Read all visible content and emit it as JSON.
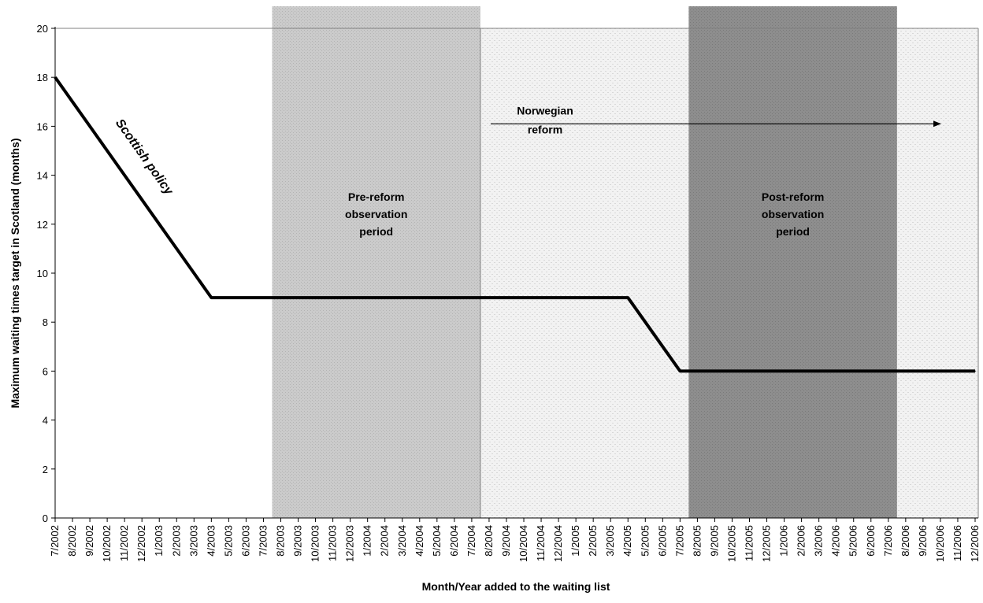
{
  "chart_data": {
    "type": "line",
    "xlabel": "Month/Year added to the waiting list",
    "ylabel": "Maximum waiting times target in Scotland (months)",
    "ylim": [
      0,
      20
    ],
    "yticks": [
      0,
      2,
      4,
      6,
      8,
      10,
      12,
      14,
      16,
      18,
      20
    ],
    "grid": false,
    "categories": [
      "7/2002",
      "8/2002",
      "9/2002",
      "10/2002",
      "11/2002",
      "12/2002",
      "1/2003",
      "2/2003",
      "3/2003",
      "4/2003",
      "5/2003",
      "6/2003",
      "7/2003",
      "8/2003",
      "9/2003",
      "10/2003",
      "11/2003",
      "12/2003",
      "1/2004",
      "2/2004",
      "3/2004",
      "4/2004",
      "5/2004",
      "6/2004",
      "7/2004",
      "8/2004",
      "9/2004",
      "10/2004",
      "11/2004",
      "12/2004",
      "1/2005",
      "2/2005",
      "3/2005",
      "4/2005",
      "5/2005",
      "6/2005",
      "7/2005",
      "8/2005",
      "9/2005",
      "10/2005",
      "11/2005",
      "12/2005",
      "1/2006",
      "2/2006",
      "3/2006",
      "4/2006",
      "5/2006",
      "6/2006",
      "7/2006",
      "8/2006",
      "9/2006",
      "10/2006",
      "11/2006",
      "12/2006"
    ],
    "series": [
      {
        "name": "",
        "values": [
          18,
          17,
          16,
          15,
          14,
          13,
          12,
          11,
          10,
          9,
          9,
          9,
          9,
          9,
          9,
          9,
          9,
          9,
          9,
          9,
          9,
          9,
          9,
          9,
          9,
          9,
          9,
          9,
          9,
          9,
          9,
          9,
          9,
          9,
          8,
          7,
          6,
          6,
          6,
          6,
          6,
          6,
          6,
          6,
          6,
          6,
          6,
          6,
          6,
          6,
          6,
          6,
          6,
          6
        ]
      }
    ],
    "regions": [
      {
        "label_lines": [
          "Pre-reform",
          "observation",
          "period"
        ],
        "start": "8/2003",
        "end": "7/2004"
      },
      {
        "label_lines": [
          "",
          "",
          ""
        ],
        "start": "8/2004",
        "end": "12/2006"
      },
      {
        "label_lines": [
          "Post-reform",
          "observation",
          "period"
        ],
        "start": "8/2005",
        "end": "7/2006"
      }
    ],
    "annotations": {
      "series_label": "Scottish policy",
      "arrow_label_lines": [
        "Norwegian",
        "reform"
      ],
      "arrow_start": "8/2004",
      "arrow_end": "10/2006",
      "arrow_y": 16.1
    }
  }
}
